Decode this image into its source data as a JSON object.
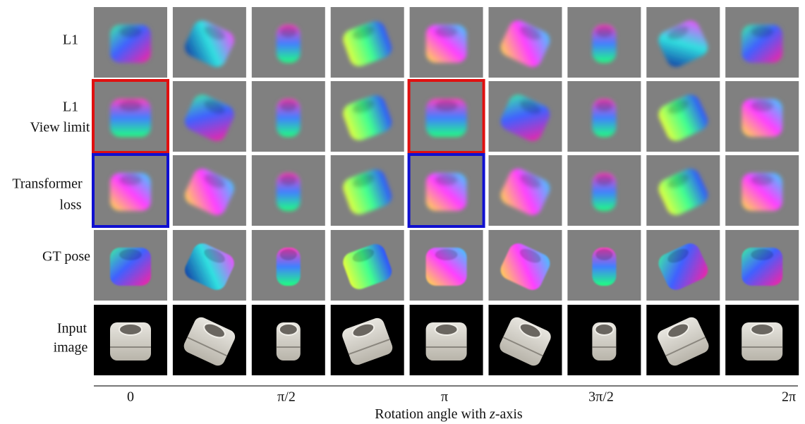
{
  "rows": [
    {
      "label": [
        "L1"
      ]
    },
    {
      "label": [
        "L1",
        "View limit"
      ]
    },
    {
      "label": [
        "Transformer",
        "loss"
      ]
    },
    {
      "label": [
        "GT pose"
      ]
    },
    {
      "label": [
        "Input",
        "image"
      ]
    }
  ],
  "axis": {
    "ticks": [
      "0",
      "π/2",
      "π",
      "3π/2",
      "2π"
    ],
    "title": [
      "Rotation angle with ",
      "z",
      "-axis"
    ]
  }
}
